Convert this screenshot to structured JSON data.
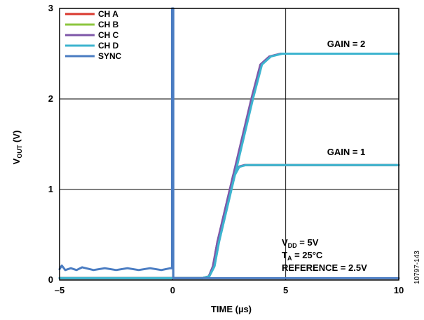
{
  "chart_data": {
    "type": "line",
    "xlabel": "TIME (µs)",
    "ylabel": {
      "main": "V",
      "sub": "OUT",
      "rest": " (V)"
    },
    "xlim": [
      -5,
      10
    ],
    "ylim": [
      0,
      3
    ],
    "x_ticks": [
      {
        "value": -5,
        "label": "–5"
      },
      {
        "value": 0,
        "label": "0"
      },
      {
        "value": 5,
        "label": "5"
      },
      {
        "value": 10,
        "label": "10"
      }
    ],
    "y_ticks": [
      {
        "value": 0,
        "label": "0"
      },
      {
        "value": 1,
        "label": "1"
      },
      {
        "value": 2,
        "label": "2"
      },
      {
        "value": 3,
        "label": "3"
      }
    ],
    "grid": true,
    "legend_position": "top-left",
    "series": [
      {
        "name": "CH A",
        "color": "#d9382e",
        "segments": [
          [
            [
              -5,
              0.02
            ],
            [
              1.3,
              0.02
            ],
            [
              1.6,
              0.04
            ],
            [
              1.8,
              0.15
            ],
            [
              2.0,
              0.42
            ],
            [
              3.5,
              2.0
            ],
            [
              3.9,
              2.38
            ],
            [
              4.3,
              2.47
            ],
            [
              4.8,
              2.5
            ],
            [
              10,
              2.5
            ]
          ],
          [
            [
              -5,
              0.02
            ],
            [
              1.3,
              0.02
            ],
            [
              1.6,
              0.04
            ],
            [
              1.8,
              0.15
            ],
            [
              2.0,
              0.42
            ],
            [
              2.7,
              1.16
            ],
            [
              2.9,
              1.25
            ],
            [
              3.2,
              1.27
            ],
            [
              10,
              1.27
            ]
          ]
        ]
      },
      {
        "name": "CH B",
        "color": "#8cc63f",
        "segments": [
          [
            [
              -5,
              0.02
            ],
            [
              1.3,
              0.02
            ],
            [
              1.6,
              0.04
            ],
            [
              1.82,
              0.15
            ],
            [
              2.02,
              0.42
            ],
            [
              3.52,
              2.0
            ],
            [
              3.92,
              2.38
            ],
            [
              4.32,
              2.47
            ],
            [
              4.82,
              2.5
            ],
            [
              10,
              2.5
            ]
          ],
          [
            [
              -5,
              0.02
            ],
            [
              1.3,
              0.02
            ],
            [
              1.6,
              0.04
            ],
            [
              1.82,
              0.15
            ],
            [
              2.02,
              0.42
            ],
            [
              2.72,
              1.16
            ],
            [
              2.92,
              1.25
            ],
            [
              3.22,
              1.27
            ],
            [
              10,
              1.27
            ]
          ]
        ]
      },
      {
        "name": "CH C",
        "color": "#7e57a8",
        "segments": [
          [
            [
              -5,
              0.02
            ],
            [
              1.3,
              0.02
            ],
            [
              1.6,
              0.04
            ],
            [
              1.78,
              0.15
            ],
            [
              1.98,
              0.42
            ],
            [
              3.48,
              2.0
            ],
            [
              3.88,
              2.38
            ],
            [
              4.28,
              2.47
            ],
            [
              4.78,
              2.5
            ],
            [
              10,
              2.5
            ]
          ],
          [
            [
              -5,
              0.02
            ],
            [
              1.3,
              0.02
            ],
            [
              1.6,
              0.04
            ],
            [
              1.78,
              0.15
            ],
            [
              1.98,
              0.42
            ],
            [
              2.68,
              1.16
            ],
            [
              2.88,
              1.25
            ],
            [
              3.18,
              1.27
            ],
            [
              10,
              1.27
            ]
          ]
        ]
      },
      {
        "name": "CH D",
        "color": "#3db4cf",
        "segments": [
          [
            [
              -5,
              0.02
            ],
            [
              1.3,
              0.02
            ],
            [
              1.62,
              0.04
            ],
            [
              1.85,
              0.15
            ],
            [
              2.05,
              0.42
            ],
            [
              3.55,
              2.0
            ],
            [
              3.95,
              2.38
            ],
            [
              4.35,
              2.47
            ],
            [
              4.85,
              2.5
            ],
            [
              10,
              2.5
            ]
          ],
          [
            [
              -5,
              0.02
            ],
            [
              1.3,
              0.02
            ],
            [
              1.62,
              0.04
            ],
            [
              1.85,
              0.15
            ],
            [
              2.05,
              0.42
            ],
            [
              2.75,
              1.16
            ],
            [
              2.95,
              1.25
            ],
            [
              3.25,
              1.27
            ],
            [
              10,
              1.27
            ]
          ]
        ]
      },
      {
        "name": "SYNC",
        "color": "#4a7cc2",
        "segments": [
          [
            [
              -5,
              0.12
            ],
            [
              -4.9,
              0.16
            ],
            [
              -4.75,
              0.11
            ],
            [
              -4.5,
              0.13
            ],
            [
              -4.25,
              0.11
            ],
            [
              -4.0,
              0.14
            ],
            [
              -3.5,
              0.11
            ],
            [
              -3.0,
              0.13
            ],
            [
              -2.5,
              0.11
            ],
            [
              -2.0,
              0.13
            ],
            [
              -1.5,
              0.11
            ],
            [
              -1.0,
              0.13
            ],
            [
              -0.5,
              0.11
            ],
            [
              -0.1,
              0.13
            ],
            [
              -0.03,
              0.13
            ],
            [
              -0.03,
              3.0
            ],
            [
              0.03,
              3.0
            ],
            [
              0.03,
              0.02
            ],
            [
              10,
              0.02
            ]
          ]
        ]
      }
    ],
    "annotations": {
      "gain2": "GAIN = 2",
      "gain1": "GAIN = 1",
      "vdd": {
        "main": "V",
        "sub": "DD",
        "rest": " = 5V"
      },
      "ta": {
        "main": "T",
        "sub": "A",
        "rest": " = 25°C"
      },
      "reference": "REFERENCE = 2.5V"
    },
    "figure_id": "10797-143"
  }
}
